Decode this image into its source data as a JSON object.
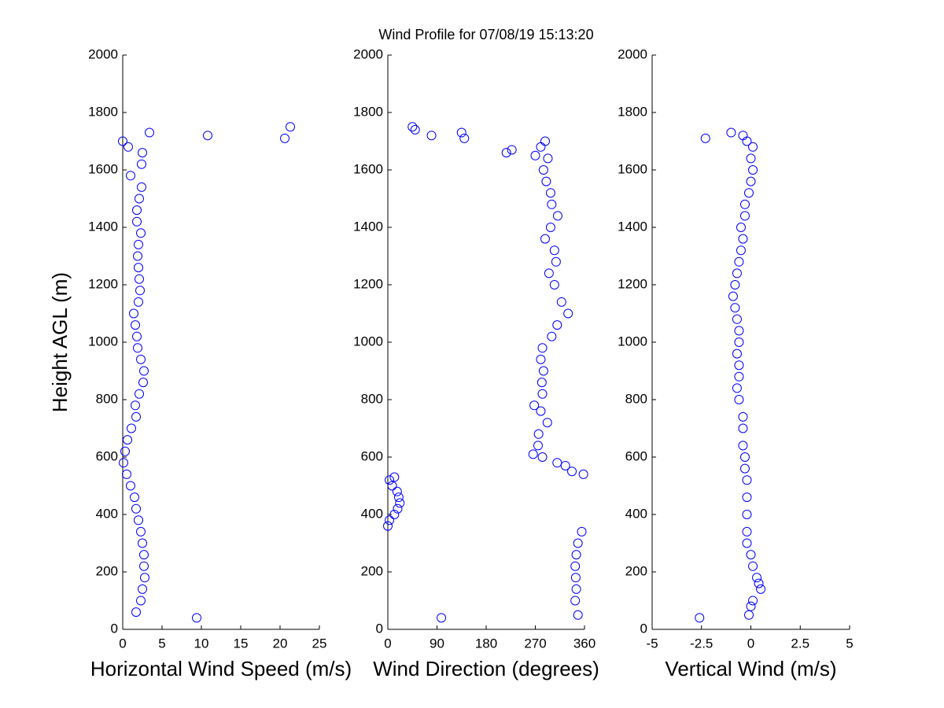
{
  "title": "Wind Profile for  07/08/19 15:13:20",
  "chart_data": [
    {
      "type": "scatter",
      "xlabel": "Horizontal Wind Speed (m/s)",
      "ylabel": "Height AGL (m)",
      "color": "#0000ff",
      "xlim": [
        0,
        25
      ],
      "xticks": [
        0,
        5,
        10,
        15,
        20,
        25
      ],
      "ylim": [
        0,
        2000
      ],
      "yticks": [
        0,
        200,
        400,
        600,
        800,
        1000,
        1200,
        1400,
        1600,
        1800,
        2000
      ],
      "x": [
        9.4,
        1.7,
        2.3,
        2.5,
        2.8,
        2.7,
        2.7,
        2.5,
        2.3,
        2.0,
        1.7,
        1.5,
        1.0,
        0.5,
        0.1,
        0.3,
        0.6,
        1.1,
        1.7,
        1.6,
        2.1,
        2.6,
        2.7,
        2.3,
        1.9,
        1.8,
        1.6,
        1.4,
        2.0,
        2.2,
        2.1,
        2.0,
        1.9,
        2.0,
        2.3,
        1.8,
        1.8,
        2.1,
        2.4,
        1.0,
        2.4,
        2.5,
        0.7,
        0.0,
        20.6,
        10.8,
        3.4,
        21.3
      ],
      "values": [
        40,
        60,
        100,
        140,
        180,
        220,
        260,
        300,
        340,
        380,
        420,
        460,
        500,
        540,
        580,
        620,
        660,
        700,
        740,
        780,
        820,
        860,
        900,
        940,
        980,
        1020,
        1060,
        1100,
        1140,
        1180,
        1220,
        1260,
        1300,
        1340,
        1380,
        1420,
        1460,
        1500,
        1540,
        1580,
        1620,
        1660,
        1680,
        1700,
        1710,
        1720,
        1730,
        1750
      ]
    },
    {
      "type": "scatter",
      "xlabel": "Wind Direction (degrees)",
      "color": "#0000ff",
      "xlim": [
        0,
        360
      ],
      "xticks": [
        0,
        90,
        180,
        270,
        360
      ],
      "ylim": [
        0,
        2000
      ],
      "yticks": [
        0,
        200,
        400,
        600,
        800,
        1000,
        1200,
        1400,
        1600,
        1800,
        2000
      ],
      "x": [
        98,
        348,
        343,
        345,
        344,
        343,
        345,
        348,
        355,
        0,
        3,
        12,
        18,
        22,
        20,
        17,
        8,
        3,
        12,
        358,
        337,
        325,
        310,
        283,
        266,
        275,
        276,
        292,
        280,
        268,
        283,
        282,
        285,
        280,
        283,
        300,
        310,
        330,
        318,
        305,
        295,
        308,
        305,
        288,
        298,
        311,
        300,
        298,
        290,
        285,
        293,
        270,
        217,
        227,
        280,
        288,
        140,
        80,
        135,
        50,
        45
      ],
      "values": [
        40,
        50,
        100,
        140,
        180,
        220,
        260,
        300,
        340,
        360,
        380,
        400,
        420,
        440,
        460,
        480,
        500,
        520,
        530,
        540,
        550,
        570,
        580,
        600,
        610,
        640,
        680,
        720,
        760,
        780,
        820,
        860,
        900,
        940,
        980,
        1020,
        1060,
        1100,
        1140,
        1200,
        1240,
        1280,
        1320,
        1360,
        1400,
        1440,
        1480,
        1520,
        1560,
        1600,
        1640,
        1650,
        1660,
        1670,
        1680,
        1700,
        1710,
        1720,
        1730,
        1740,
        1750
      ]
    },
    {
      "type": "scatter",
      "xlabel": "Vertical Wind (m/s)",
      "color": "#0000ff",
      "xlim": [
        -5,
        5
      ],
      "xticks": [
        -5,
        -2.5,
        0,
        2.5,
        5
      ],
      "ylim": [
        0,
        2000
      ],
      "yticks": [
        0,
        200,
        400,
        600,
        800,
        1000,
        1200,
        1400,
        1600,
        1800,
        2000
      ],
      "x": [
        -2.6,
        -0.1,
        0.0,
        0.1,
        0.5,
        0.4,
        0.3,
        0.1,
        0.0,
        -0.2,
        -0.2,
        -0.2,
        -0.2,
        -0.2,
        -0.3,
        -0.3,
        -0.4,
        -0.4,
        -0.4,
        -0.6,
        -0.7,
        -0.6,
        -0.6,
        -0.7,
        -0.6,
        -0.6,
        -0.7,
        -0.8,
        -0.9,
        -0.8,
        -0.7,
        -0.6,
        -0.5,
        -0.4,
        -0.5,
        -0.3,
        -0.3,
        -0.1,
        0.0,
        0.1,
        0.0,
        0.1,
        -0.2,
        -2.3,
        -0.4,
        -1.0
      ],
      "values": [
        40,
        50,
        80,
        100,
        140,
        160,
        180,
        220,
        260,
        300,
        340,
        400,
        460,
        520,
        560,
        600,
        640,
        700,
        740,
        800,
        840,
        880,
        920,
        960,
        1000,
        1040,
        1080,
        1120,
        1160,
        1200,
        1240,
        1280,
        1320,
        1360,
        1400,
        1440,
        1480,
        1520,
        1560,
        1600,
        1640,
        1680,
        1700,
        1710,
        1720,
        1730
      ]
    }
  ]
}
